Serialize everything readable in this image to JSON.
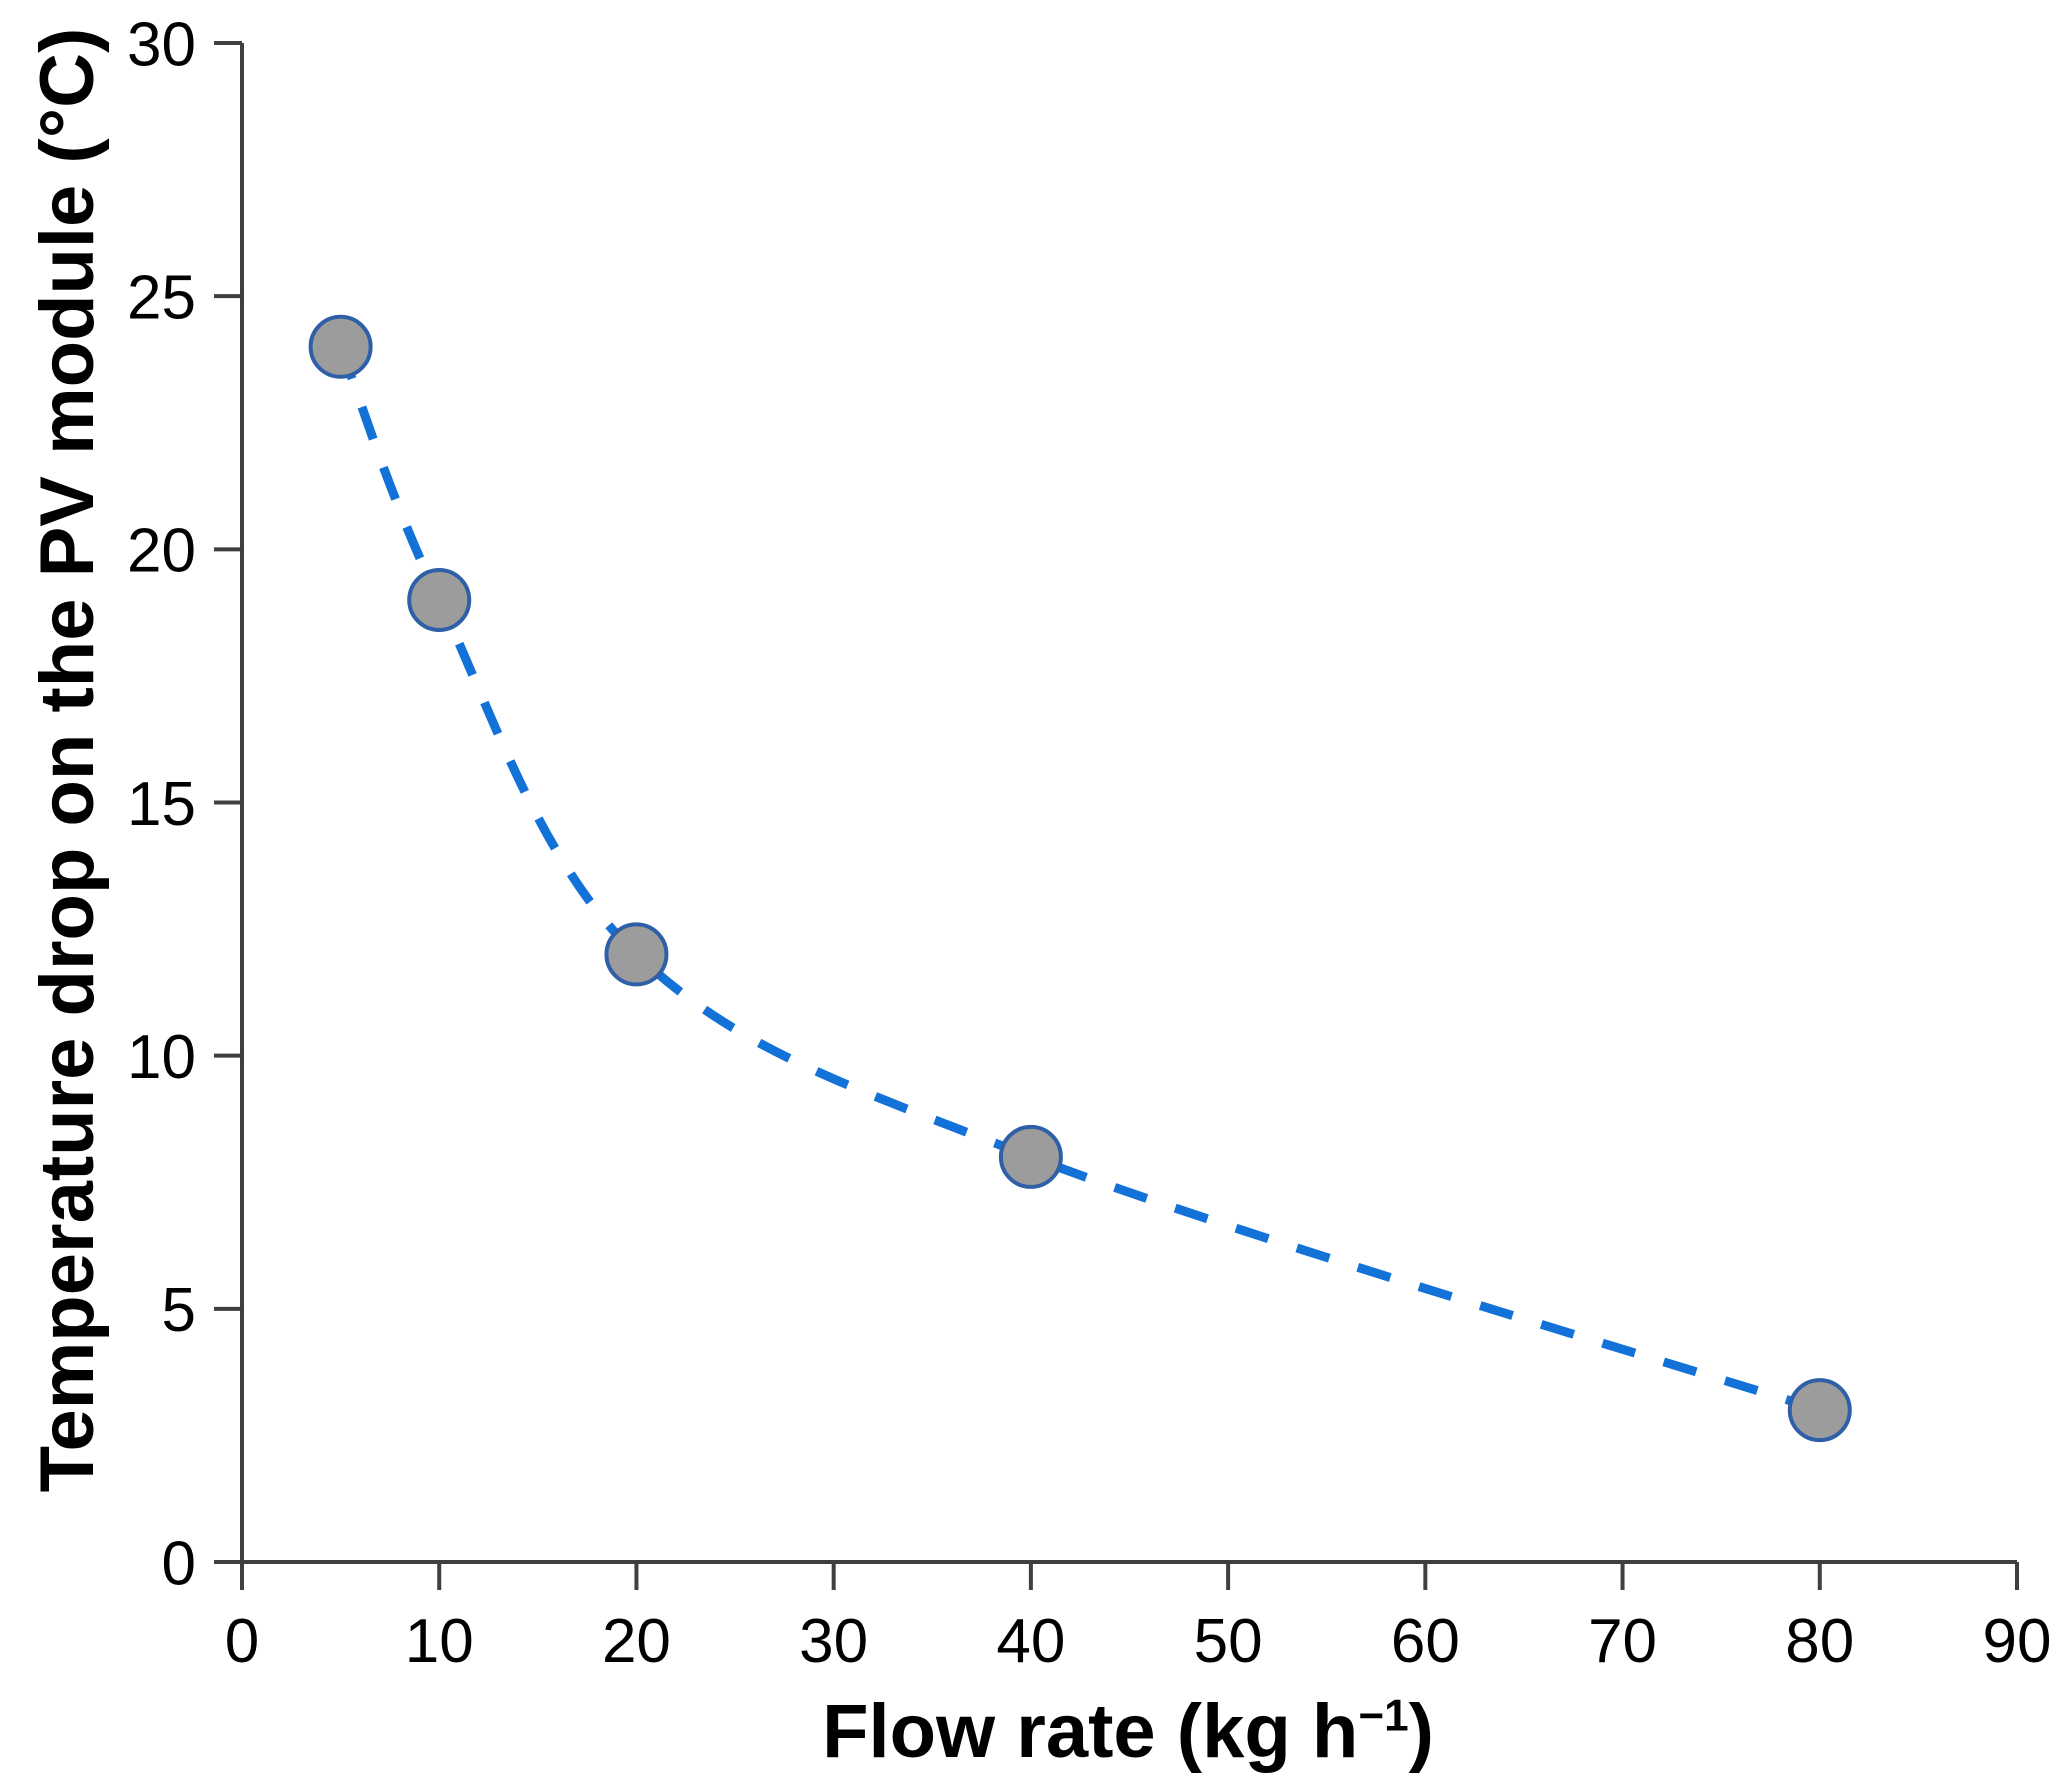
{
  "chart_data": {
    "type": "scatter",
    "title": "",
    "xlabel_prefix": "Flow rate (kg h",
    "xlabel_superscript": "−1",
    "xlabel_suffix": ")",
    "ylabel": "Temperature drop on the PV module (°C)",
    "xlim": [
      0,
      90
    ],
    "ylim": [
      0,
      30
    ],
    "x_ticks": [
      "0",
      "10",
      "20",
      "30",
      "40",
      "50",
      "60",
      "70",
      "80",
      "90"
    ],
    "y_ticks": [
      "0",
      "5",
      "10",
      "15",
      "20",
      "25",
      "30"
    ],
    "grid": false,
    "legend": false,
    "series": [
      {
        "name": "Temperature drop on the PV module",
        "x": [
          5,
          10,
          20,
          40,
          80
        ],
        "y": [
          24,
          19,
          12,
          8,
          3
        ],
        "line_style": "dashed",
        "marker": "circle"
      }
    ],
    "colors": {
      "line": "#1272D8",
      "marker_fill": "#9C9C9C",
      "marker_stroke": "#2F5FA7",
      "axis": "#3F3F3F",
      "text": "#000000"
    }
  }
}
